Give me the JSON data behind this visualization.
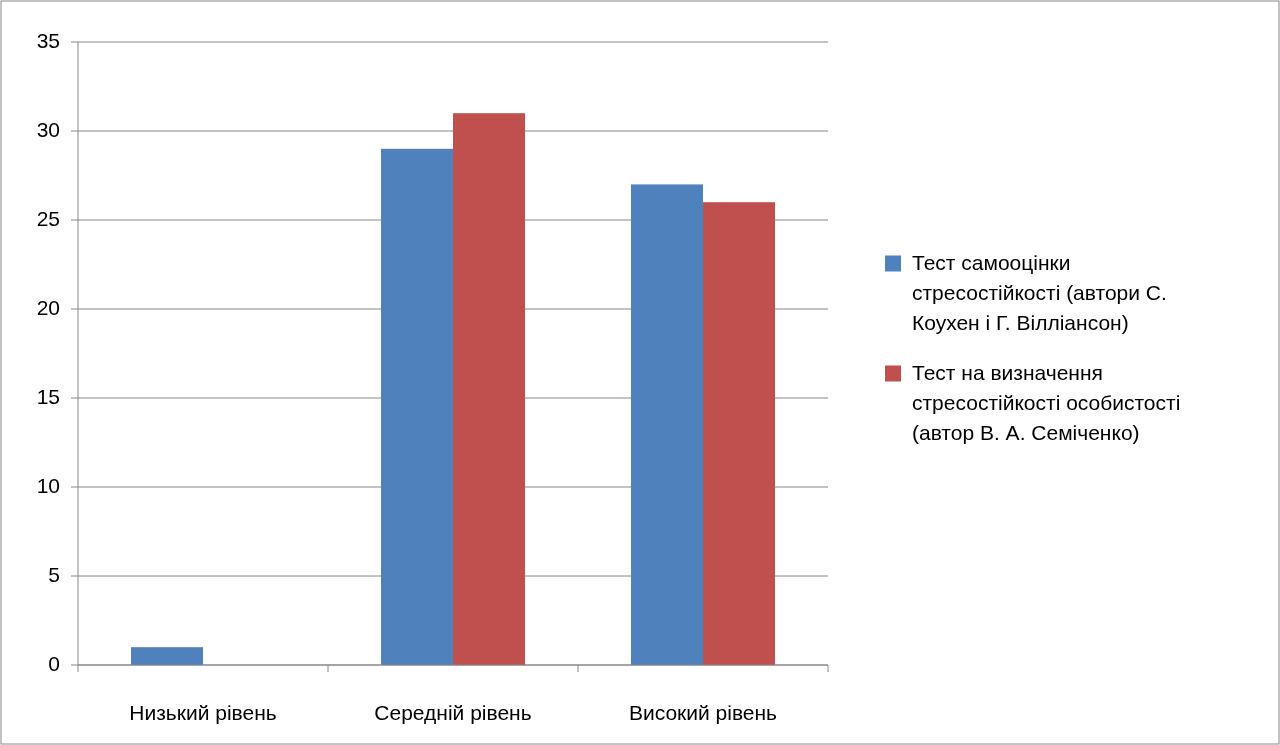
{
  "chart_data": {
    "type": "bar",
    "categories": [
      "Низький рівень",
      "Середній рівень",
      "Високий рівень"
    ],
    "series": [
      {
        "name": "Тест самооцінки стресостійкості (автори С. Коухен і Г. Вілліансон)",
        "color": "#4f81bd",
        "values": [
          1,
          29,
          27
        ]
      },
      {
        "name": "Тест на визначення стресостійкості особистості (автор В. А. Семіченко)",
        "color": "#c0504d",
        "values": [
          0,
          31,
          26
        ]
      }
    ],
    "ylim": [
      0,
      35
    ],
    "yticks": [
      0,
      5,
      10,
      15,
      20,
      25,
      30,
      35
    ],
    "grid": "y",
    "legend": "right"
  }
}
